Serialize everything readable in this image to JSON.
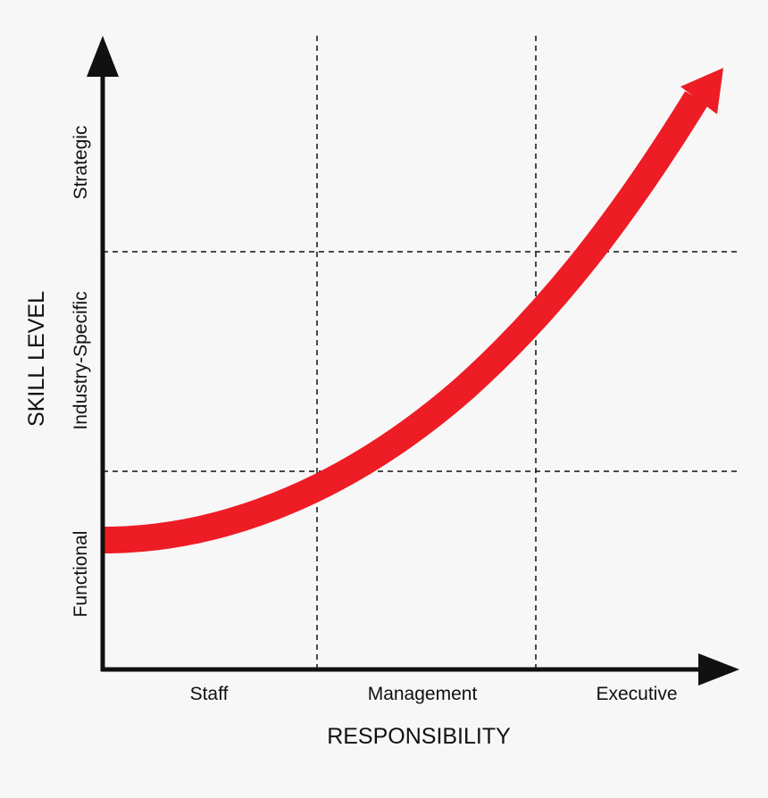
{
  "diagram": {
    "y_axis_label": "SKILL LEVEL",
    "x_axis_label": "RESPONSIBILITY",
    "columns": [
      "Staff",
      "Management",
      "Executive"
    ],
    "rows": [
      "Functional",
      "Industry-Specific",
      "Strategic"
    ],
    "colors": {
      "background": "#f7f7f7",
      "axis": "#111111",
      "grid": "#111111",
      "curve": "#ee1c25"
    }
  }
}
